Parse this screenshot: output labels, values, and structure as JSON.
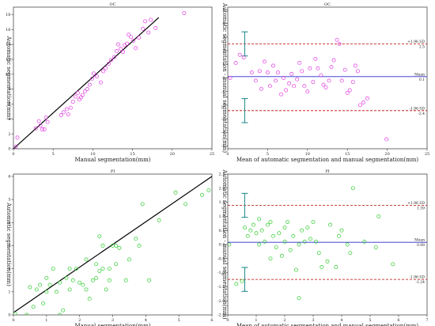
{
  "chart_data": [
    {
      "type": "scatter",
      "title": "OC",
      "xlabel": "Manual segmentation(mm)",
      "ylabel": "Automatic segmentation(mm)",
      "xlim": [
        0,
        25
      ],
      "ylim": [
        0,
        19
      ],
      "xticks": [
        "0",
        "5",
        "10",
        "15",
        "20",
        "25"
      ],
      "yticks": [
        "0",
        "2",
        "4",
        "6",
        "8",
        "10",
        "12",
        "14",
        "16",
        "18"
      ],
      "marker_color": "#e23be2",
      "line_color": "#000000",
      "fit_line": [
        [
          0,
          0
        ],
        [
          18.3,
          17.6
        ]
      ],
      "points": [
        [
          0.3,
          0.3
        ],
        [
          0.5,
          1.5
        ],
        [
          2.8,
          2.7
        ],
        [
          3.2,
          3.7
        ],
        [
          3.4,
          3.1
        ],
        [
          3.6,
          2.6
        ],
        [
          3.9,
          2.6
        ],
        [
          4.1,
          4.2
        ],
        [
          4.3,
          3.6
        ],
        [
          6.0,
          4.5
        ],
        [
          6.3,
          4.9
        ],
        [
          6.7,
          5.3
        ],
        [
          6.9,
          4.6
        ],
        [
          7.2,
          5.5
        ],
        [
          7.5,
          6.3
        ],
        [
          7.8,
          7.0
        ],
        [
          8.1,
          7.5
        ],
        [
          8.3,
          6.6
        ],
        [
          8.5,
          6.9
        ],
        [
          8.7,
          7.2
        ],
        [
          9.0,
          7.7
        ],
        [
          9.3,
          8.0
        ],
        [
          9.6,
          8.6
        ],
        [
          9.9,
          9.4
        ],
        [
          10.1,
          10.1
        ],
        [
          10.5,
          9.7
        ],
        [
          11.0,
          8.9
        ],
        [
          11.3,
          10.4
        ],
        [
          11.6,
          10.8
        ],
        [
          12.0,
          11.4
        ],
        [
          12.3,
          11.9
        ],
        [
          12.7,
          12.3
        ],
        [
          13.0,
          13.1
        ],
        [
          13.2,
          14.0
        ],
        [
          13.5,
          13.4
        ],
        [
          13.8,
          13.0
        ],
        [
          14.0,
          13.9
        ],
        [
          14.3,
          14.1
        ],
        [
          14.5,
          15.3
        ],
        [
          14.8,
          15.0
        ],
        [
          15.1,
          14.5
        ],
        [
          15.4,
          13.5
        ],
        [
          15.8,
          14.9
        ],
        [
          16.3,
          16.1
        ],
        [
          16.6,
          17.1
        ],
        [
          17.0,
          15.6
        ],
        [
          17.3,
          17.3
        ],
        [
          17.9,
          16.2
        ],
        [
          21.5,
          18.2
        ]
      ]
    },
    {
      "type": "scatter",
      "title": "OC",
      "xlabel": "Mean of automatic segmentation and manual segmentation(mm)",
      "ylabel": "Automatic segmentation - manual segmentation(mm)",
      "xlim": [
        0,
        25
      ],
      "ylim": [
        -5.2,
        5.2
      ],
      "xticks": [
        "0",
        "5",
        "10",
        "15",
        "20",
        "25"
      ],
      "yticks": [
        "-5",
        "-4",
        "-3",
        "-2",
        "-1",
        "0",
        "1",
        "2",
        "3",
        "4",
        "5"
      ],
      "marker_color": "#e23be2",
      "mean": 0.1,
      "upper_loa": 2.5,
      "lower_loa": -2.4,
      "annotations": {
        "upper_label": "+1.96 SD",
        "upper_value": "2.5",
        "mean_label": "Mean",
        "mean_value": "0.1",
        "lower_label": "-1.96 SD",
        "lower_value": "-2.4"
      },
      "points": [
        [
          0.3,
          0.0
        ],
        [
          1.0,
          1.1
        ],
        [
          1.5,
          1.7
        ],
        [
          2.0,
          1.5
        ],
        [
          3.0,
          0.4
        ],
        [
          3.5,
          -0.2
        ],
        [
          4.0,
          0.5
        ],
        [
          4.2,
          -0.8
        ],
        [
          4.6,
          1.2
        ],
        [
          5.0,
          0.4
        ],
        [
          5.3,
          -0.6
        ],
        [
          5.7,
          0.9
        ],
        [
          6.0,
          -0.2
        ],
        [
          6.3,
          0.4
        ],
        [
          6.7,
          -1.2
        ],
        [
          7.0,
          0.0
        ],
        [
          7.3,
          -0.9
        ],
        [
          7.7,
          -0.4
        ],
        [
          8.0,
          0.3
        ],
        [
          8.3,
          -0.6
        ],
        [
          8.7,
          -0.1
        ],
        [
          9.0,
          1.1
        ],
        [
          9.3,
          0.5
        ],
        [
          9.6,
          -0.6
        ],
        [
          10.0,
          -1.0
        ],
        [
          10.3,
          0.7
        ],
        [
          10.7,
          -0.3
        ],
        [
          11.0,
          1.4
        ],
        [
          11.3,
          0.7
        ],
        [
          11.7,
          0.2
        ],
        [
          12.0,
          -0.5
        ],
        [
          12.3,
          -0.7
        ],
        [
          12.7,
          -0.2
        ],
        [
          13.0,
          0.8
        ],
        [
          13.3,
          1.3
        ],
        [
          13.7,
          2.8
        ],
        [
          14.0,
          2.5
        ],
        [
          14.3,
          -0.2
        ],
        [
          14.7,
          0.6
        ],
        [
          15.0,
          -1.1
        ],
        [
          15.3,
          -0.9
        ],
        [
          15.7,
          -0.3
        ],
        [
          16.0,
          0.9
        ],
        [
          16.3,
          0.5
        ],
        [
          16.6,
          -2.0
        ],
        [
          17.0,
          -1.8
        ],
        [
          17.5,
          -1.5
        ],
        [
          19.9,
          -4.5
        ]
      ]
    },
    {
      "type": "scatter",
      "title": "PI",
      "xlabel": "Manual segmentation(mm)",
      "ylabel": "Automatic segmentation(mm)",
      "xlim": [
        0,
        6
      ],
      "ylim": [
        0,
        6.1
      ],
      "xticks": [
        "0",
        "1",
        "2",
        "3",
        "4",
        "5",
        "6"
      ],
      "yticks": [
        "0",
        "1",
        "2",
        "3",
        "4",
        "5",
        "6"
      ],
      "marker_color": "#2ccc2c",
      "line_color": "#000000",
      "fit_line": [
        [
          0,
          0.1
        ],
        [
          6,
          6.0
        ]
      ],
      "points": [
        [
          0.05,
          0.05
        ],
        [
          0.4,
          0.0
        ],
        [
          0.5,
          1.2
        ],
        [
          0.6,
          0.35
        ],
        [
          0.7,
          1.1
        ],
        [
          0.8,
          1.3
        ],
        [
          0.9,
          0.5
        ],
        [
          1.0,
          1.0
        ],
        [
          1.0,
          1.6
        ],
        [
          1.1,
          1.3
        ],
        [
          1.2,
          2.0
        ],
        [
          1.3,
          1.0
        ],
        [
          1.4,
          1.4
        ],
        [
          1.4,
          0.0
        ],
        [
          1.5,
          0.2
        ],
        [
          1.6,
          1.6
        ],
        [
          1.7,
          1.1
        ],
        [
          1.7,
          2.0
        ],
        [
          1.8,
          1.5
        ],
        [
          1.9,
          2.0
        ],
        [
          2.0,
          1.4
        ],
        [
          2.1,
          1.3
        ],
        [
          2.2,
          2.4
        ],
        [
          2.2,
          1.1
        ],
        [
          2.3,
          0.7
        ],
        [
          2.4,
          1.5
        ],
        [
          2.5,
          2.2
        ],
        [
          2.5,
          1.6
        ],
        [
          2.6,
          3.4
        ],
        [
          2.6,
          1.9
        ],
        [
          2.7,
          3.0
        ],
        [
          2.7,
          2.0
        ],
        [
          2.8,
          1.1
        ],
        [
          2.9,
          2.0
        ],
        [
          2.9,
          1.5
        ],
        [
          3.0,
          3.0
        ],
        [
          3.1,
          3.0
        ],
        [
          3.1,
          2.2
        ],
        [
          3.2,
          2.9
        ],
        [
          3.4,
          1.5
        ],
        [
          3.5,
          2.4
        ],
        [
          3.7,
          3.3
        ],
        [
          3.8,
          3.0
        ],
        [
          3.9,
          4.8
        ],
        [
          4.1,
          1.5
        ],
        [
          4.4,
          4.1
        ],
        [
          4.9,
          5.3
        ],
        [
          5.2,
          4.8
        ],
        [
          5.7,
          5.2
        ],
        [
          5.9,
          5.4
        ]
      ]
    },
    {
      "type": "scatter",
      "title": "PI",
      "xlabel": "Mean of automatic segmentation and manual segmentation(mm)",
      "ylabel": "Automatic segmentation - manual segmentation(mm)",
      "xlim": [
        0,
        7
      ],
      "ylim": [
        -2.5,
        2.5
      ],
      "xticks": [
        "0",
        "1",
        "2",
        "3",
        "4",
        "5",
        "6",
        "7"
      ],
      "yticks": [
        "-2.5",
        "-2.0",
        "-1.5",
        "-1.0",
        "-0.5",
        "0.0",
        "0.5",
        "1.0",
        "1.5",
        "2.0",
        "2.5"
      ],
      "marker_color": "#2ccc2c",
      "mean": 0.08,
      "upper_loa": 1.39,
      "lower_loa": -1.24,
      "annotations": {
        "upper_label": "+1.96 SD",
        "upper_value": "1.39",
        "mean_label": "Mean",
        "mean_value": "0.08",
        "lower_label": "-1.96 SD",
        "lower_value": "-1.24"
      },
      "points": [
        [
          0.05,
          0.0
        ],
        [
          0.3,
          -1.4
        ],
        [
          0.5,
          -1.3
        ],
        [
          0.6,
          0.6
        ],
        [
          0.7,
          0.3
        ],
        [
          0.8,
          0.5
        ],
        [
          0.9,
          0.7
        ],
        [
          1.0,
          0.4
        ],
        [
          1.1,
          0.0
        ],
        [
          1.1,
          0.9
        ],
        [
          1.2,
          0.5
        ],
        [
          1.3,
          0.1
        ],
        [
          1.4,
          0.7
        ],
        [
          1.5,
          0.8
        ],
        [
          1.5,
          -0.5
        ],
        [
          1.6,
          0.3
        ],
        [
          1.7,
          -0.1
        ],
        [
          1.8,
          0.4
        ],
        [
          1.9,
          -0.4
        ],
        [
          2.0,
          0.6
        ],
        [
          2.0,
          0.1
        ],
        [
          2.1,
          0.8
        ],
        [
          2.2,
          -0.2
        ],
        [
          2.3,
          0.3
        ],
        [
          2.4,
          -0.9
        ],
        [
          2.5,
          0.0
        ],
        [
          2.5,
          -1.9
        ],
        [
          2.6,
          0.5
        ],
        [
          2.7,
          0.1
        ],
        [
          2.8,
          0.6
        ],
        [
          2.9,
          0.2
        ],
        [
          3.0,
          0.8
        ],
        [
          3.1,
          0.1
        ],
        [
          3.2,
          -0.3
        ],
        [
          3.3,
          -0.8
        ],
        [
          3.5,
          -0.6
        ],
        [
          3.6,
          0.7
        ],
        [
          3.8,
          -0.8
        ],
        [
          3.9,
          0.3
        ],
        [
          4.0,
          0.5
        ],
        [
          4.2,
          0.0
        ],
        [
          4.3,
          -0.3
        ],
        [
          4.4,
          2.0
        ],
        [
          4.8,
          0.1
        ],
        [
          5.2,
          -0.1
        ],
        [
          5.3,
          1.0
        ],
        [
          5.8,
          -0.7
        ]
      ]
    }
  ]
}
